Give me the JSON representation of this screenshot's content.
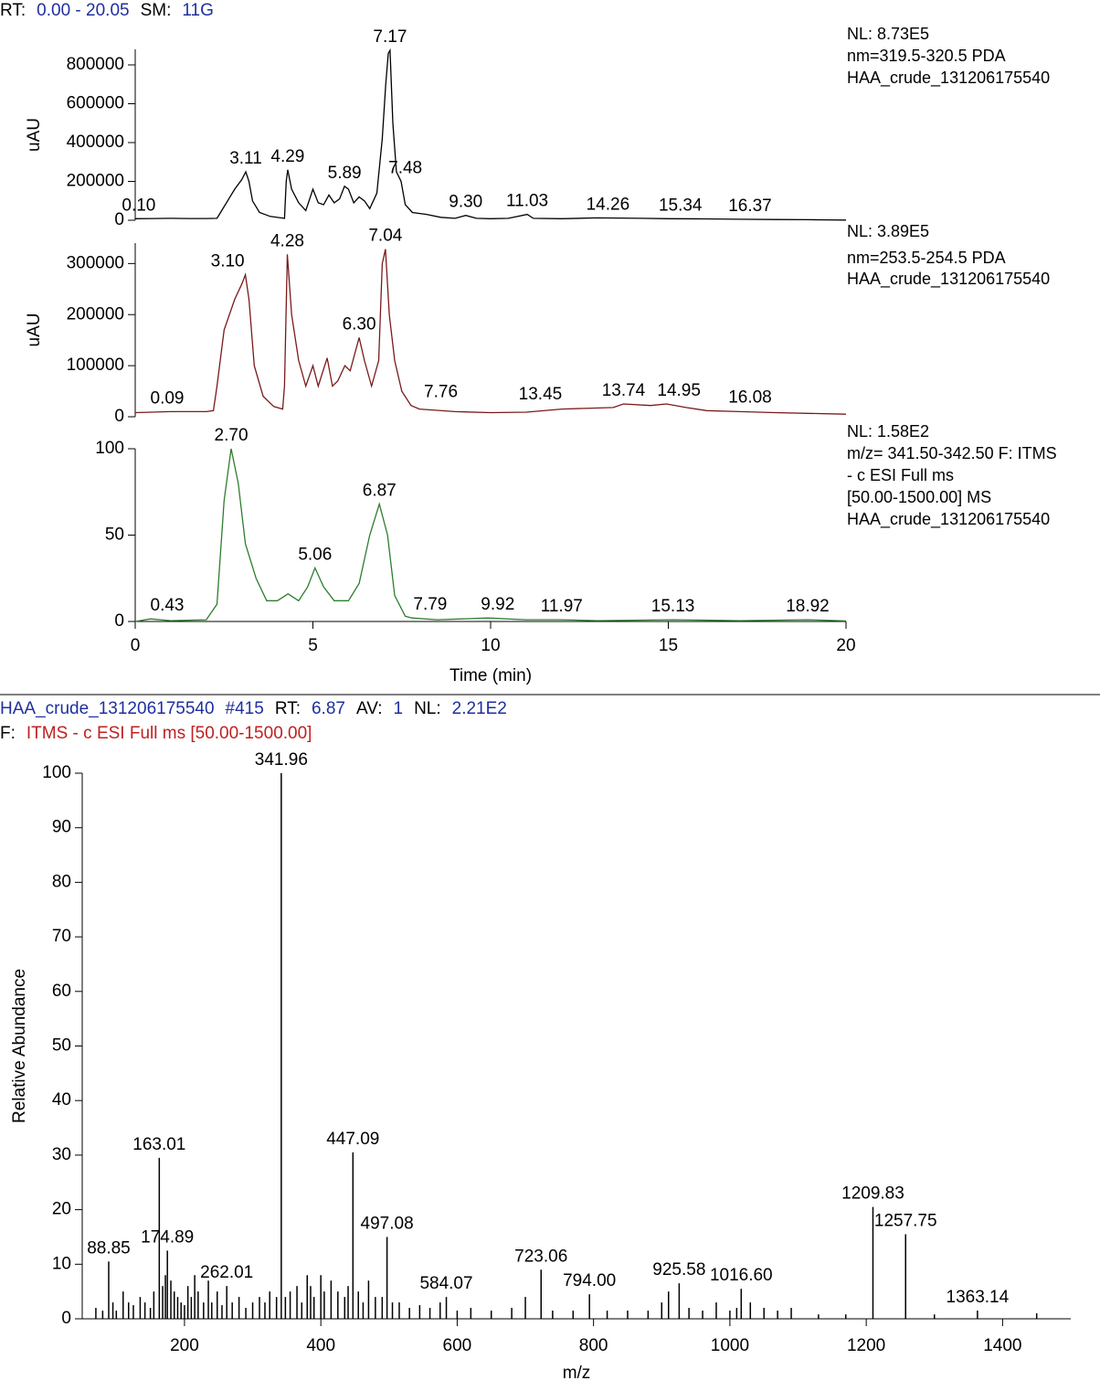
{
  "header": [
    {
      "text": "RT:",
      "color": "#000000"
    },
    {
      "text": "0.00 - 20.05",
      "color": "#1f2f9f"
    },
    {
      "text": "SM:",
      "color": "#000000"
    },
    {
      "text": "11G",
      "color": "#1f2f9f"
    }
  ],
  "chart_data": [
    {
      "type": "line",
      "color": "#000000",
      "y_label": "uAU",
      "info": [
        "NL: 8.73E5",
        "nm=319.5-320.5  PDA",
        "HAA_crude_131206175540"
      ],
      "info_color": "#000000",
      "xlim": [
        0,
        20
      ],
      "ylim": [
        0,
        880000
      ],
      "yticks": [
        0,
        200000,
        400000,
        600000,
        800000
      ],
      "x": [
        0,
        0.5,
        1,
        1.5,
        2,
        2.3,
        2.4,
        2.6,
        2.8,
        3.0,
        3.11,
        3.2,
        3.3,
        3.5,
        3.8,
        4.1,
        4.2,
        4.25,
        4.29,
        4.4,
        4.6,
        4.8,
        5.0,
        5.15,
        5.3,
        5.45,
        5.6,
        5.75,
        5.89,
        6.0,
        6.15,
        6.3,
        6.45,
        6.6,
        6.8,
        6.95,
        7.05,
        7.12,
        7.17,
        7.25,
        7.35,
        7.48,
        7.6,
        7.8,
        8.2,
        8.6,
        9.0,
        9.3,
        9.6,
        10,
        10.5,
        11.03,
        11.2,
        12,
        13,
        14.26,
        15,
        16,
        17,
        18,
        19,
        19.5,
        20
      ],
      "values": [
        8000,
        9000,
        10000,
        9000,
        9000,
        10000,
        40000,
        100000,
        160000,
        210000,
        250000,
        200000,
        100000,
        40000,
        20000,
        12000,
        10000,
        200000,
        260000,
        160000,
        90000,
        50000,
        160000,
        90000,
        80000,
        130000,
        90000,
        110000,
        175000,
        160000,
        90000,
        120000,
        100000,
        60000,
        140000,
        420000,
        700000,
        860000,
        875000,
        500000,
        250000,
        200000,
        80000,
        40000,
        30000,
        15000,
        10000,
        25000,
        10000,
        8000,
        10000,
        30000,
        10000,
        8000,
        12000,
        10000,
        8000,
        7000,
        5000,
        4000,
        3000,
        2000,
        1000
      ],
      "annotations": [
        {
          "text": "0.10",
          "x": 0.1,
          "y": 8000
        },
        {
          "text": "3.11",
          "x": 3.11,
          "y": 250000
        },
        {
          "text": "4.29",
          "x": 4.29,
          "y": 260000
        },
        {
          "text": "5.89",
          "x": 5.89,
          "y": 175000
        },
        {
          "text": "7.17",
          "x": 7.17,
          "y": 875000
        },
        {
          "text": "7.48",
          "x": 7.6,
          "y": 200000
        },
        {
          "text": "9.30",
          "x": 9.3,
          "y": 25000
        },
        {
          "text": "11.03",
          "x": 11.03,
          "y": 30000
        },
        {
          "text": "14.26",
          "x": 13.3,
          "y": 12000
        },
        {
          "text": "15.34",
          "x": 15.34,
          "y": 8000
        },
        {
          "text": "16.37",
          "x": 17.3,
          "y": 5000
        }
      ]
    },
    {
      "type": "line",
      "color": "#7a1a1a",
      "y_label": "uAU",
      "info": [
        "NL: 3.89E5",
        "nm=253.5-254.5  PDA",
        "HAA_crude_131206175540"
      ],
      "info_color": "#7a1a1a",
      "xlim": [
        0,
        20
      ],
      "ylim": [
        0,
        340000
      ],
      "yticks": [
        0,
        100000,
        200000,
        300000
      ],
      "x": [
        0,
        1,
        2,
        2.2,
        2.3,
        2.5,
        2.8,
        3.0,
        3.1,
        3.2,
        3.35,
        3.6,
        3.9,
        4.15,
        4.2,
        4.28,
        4.4,
        4.6,
        4.8,
        5.0,
        5.15,
        5.4,
        5.55,
        5.7,
        5.9,
        6.05,
        6.3,
        6.45,
        6.65,
        6.85,
        6.95,
        7.04,
        7.15,
        7.3,
        7.5,
        7.76,
        8,
        9,
        10,
        11,
        12,
        13.45,
        13.74,
        14.5,
        14.95,
        15.5,
        16.08,
        17,
        18,
        20
      ],
      "values": [
        8000,
        10000,
        10000,
        12000,
        60000,
        170000,
        230000,
        260000,
        278000,
        230000,
        100000,
        40000,
        20000,
        15000,
        60000,
        318000,
        200000,
        110000,
        60000,
        100000,
        60000,
        115000,
        60000,
        70000,
        100000,
        90000,
        155000,
        110000,
        60000,
        110000,
        300000,
        328000,
        200000,
        110000,
        50000,
        22000,
        15000,
        10000,
        8000,
        9000,
        15000,
        18000,
        25000,
        22000,
        25000,
        18000,
        12000,
        10000,
        8000,
        5000
      ],
      "annotations": [
        {
          "text": "0.09",
          "x": 0.9,
          "y": 10000
        },
        {
          "text": "3.10",
          "x": 2.6,
          "y": 278000
        },
        {
          "text": "4.28",
          "x": 4.28,
          "y": 318000
        },
        {
          "text": "6.30",
          "x": 6.3,
          "y": 155000
        },
        {
          "text": "7.04",
          "x": 7.04,
          "y": 328000
        },
        {
          "text": "7.76",
          "x": 8.6,
          "y": 22000
        },
        {
          "text": "13.45",
          "x": 11.4,
          "y": 18000
        },
        {
          "text": "13.74",
          "x": 13.74,
          "y": 25000
        },
        {
          "text": "14.95",
          "x": 15.3,
          "y": 25000
        },
        {
          "text": "16.08",
          "x": 17.3,
          "y": 12000
        }
      ]
    },
    {
      "type": "line",
      "color": "#2e7d2e",
      "x_label": "Time (min)",
      "info": [
        "NL: 1.58E2",
        "m/z= 341.50-342.50 F: ITMS",
        "- c ESI Full ms",
        "[50.00-1500.00]  MS",
        "HAA_crude_131206175540"
      ],
      "info_color": "#2e7d2e",
      "xlim": [
        0,
        20
      ],
      "xticks": [
        0,
        5,
        10,
        15,
        20
      ],
      "ylim": [
        0,
        100
      ],
      "yticks": [
        0,
        50,
        100
      ],
      "x": [
        0,
        0.43,
        1,
        2,
        2.3,
        2.5,
        2.7,
        2.9,
        3.1,
        3.4,
        3.7,
        4.0,
        4.3,
        4.6,
        4.85,
        5.06,
        5.3,
        5.6,
        6.0,
        6.3,
        6.6,
        6.87,
        7.1,
        7.3,
        7.6,
        7.79,
        8.5,
        9.92,
        11,
        11.97,
        13,
        15.13,
        17,
        18.92,
        20
      ],
      "values": [
        0,
        1.5,
        0.5,
        1,
        10,
        70,
        100,
        80,
        45,
        25,
        12,
        12,
        16,
        12,
        20,
        31,
        20,
        12,
        12,
        22,
        50,
        68,
        50,
        15,
        3,
        2,
        1,
        2,
        1,
        1,
        0.5,
        1,
        0.5,
        1,
        0.3
      ],
      "annotations": [
        {
          "text": "0.43",
          "x": 0.9,
          "y": 1.5
        },
        {
          "text": "2.70",
          "x": 2.7,
          "y": 100
        },
        {
          "text": "5.06",
          "x": 5.06,
          "y": 31
        },
        {
          "text": "6.87",
          "x": 6.87,
          "y": 68
        },
        {
          "text": "7.79",
          "x": 8.3,
          "y": 2
        },
        {
          "text": "9.92",
          "x": 10.2,
          "y": 2
        },
        {
          "text": "11.97",
          "x": 12.0,
          "y": 1
        },
        {
          "text": "15.13",
          "x": 15.13,
          "y": 1
        },
        {
          "text": "18.92",
          "x": 18.92,
          "y": 1
        }
      ]
    },
    {
      "type": "stick",
      "color": "#000000",
      "header_lines": [
        [
          {
            "text": "HAA_crude_131206175540",
            "color": "#1f2f9f"
          },
          {
            "text": "#415",
            "color": "#1f2f9f"
          },
          {
            "text": "RT:",
            "color": "#000000"
          },
          {
            "text": "6.87",
            "color": "#1f2f9f"
          },
          {
            "text": "AV:",
            "color": "#000000"
          },
          {
            "text": "1",
            "color": "#1f2f9f"
          },
          {
            "text": "NL:",
            "color": "#000000"
          },
          {
            "text": "2.21E2",
            "color": "#1f2f9f"
          }
        ],
        [
          {
            "text": "F:",
            "color": "#000000"
          },
          {
            "text": "ITMS - c ESI Full ms [50.00-1500.00]",
            "color": "#c0201f"
          }
        ]
      ],
      "x_label": "m/z",
      "y_label": "Relative Abundance",
      "xlim": [
        50,
        1500
      ],
      "xticks": [
        200,
        400,
        600,
        800,
        1000,
        1200,
        1400
      ],
      "ylim": [
        0,
        100
      ],
      "yticks": [
        0,
        10,
        20,
        30,
        40,
        50,
        60,
        70,
        80,
        90,
        100
      ],
      "x": [
        70,
        80,
        88.85,
        95,
        100,
        110,
        118,
        125,
        135,
        142,
        150,
        155,
        163.01,
        168,
        172,
        174.89,
        180,
        185,
        190,
        195,
        200,
        205,
        210,
        215,
        220,
        228,
        235,
        240,
        248,
        255,
        262.01,
        270,
        280,
        290,
        300,
        310,
        318,
        325,
        335,
        341.96,
        348,
        355,
        365,
        372,
        380,
        385,
        390,
        400,
        405,
        415,
        425,
        435,
        440,
        447.09,
        455,
        462,
        470,
        480,
        490,
        497.08,
        505,
        515,
        530,
        545,
        560,
        575,
        584.07,
        600,
        620,
        650,
        680,
        700,
        723.06,
        740,
        770,
        794.0,
        820,
        850,
        880,
        900,
        910,
        925.58,
        940,
        960,
        980,
        1000,
        1010,
        1016.6,
        1030,
        1050,
        1070,
        1090,
        1130,
        1170,
        1209.83,
        1257.75,
        1300,
        1363.14,
        1450
      ],
      "values": [
        2,
        1.5,
        10.5,
        3,
        1.5,
        5,
        3,
        2.5,
        4,
        3,
        2,
        5,
        29.5,
        6,
        8,
        12.5,
        7,
        5,
        4,
        3,
        2.5,
        6,
        4,
        8,
        5,
        3,
        7,
        3,
        5,
        2.5,
        6,
        3,
        4,
        2,
        3,
        4,
        3,
        5,
        4,
        100,
        4,
        5,
        6,
        3,
        8,
        6,
        4,
        8,
        5,
        7,
        5,
        4,
        6,
        30.5,
        5,
        3,
        7,
        4,
        4,
        15,
        3,
        3,
        2,
        2.5,
        2,
        3,
        4,
        1.5,
        2,
        1.5,
        2,
        4,
        9,
        1.5,
        1.5,
        4.5,
        1.5,
        1.5,
        1.5,
        3,
        5,
        6.5,
        2,
        1.5,
        3,
        1.5,
        2,
        5.5,
        3,
        2,
        1.5,
        2,
        0.8,
        0.8,
        20.5,
        15.5,
        0.8,
        1.5,
        1
      ],
      "labels": [
        null,
        null,
        "88.85",
        null,
        null,
        null,
        null,
        null,
        null,
        null,
        null,
        null,
        "163.01",
        null,
        null,
        "174.89",
        null,
        null,
        null,
        null,
        null,
        null,
        null,
        null,
        null,
        null,
        null,
        null,
        null,
        null,
        "262.01",
        null,
        null,
        null,
        null,
        null,
        null,
        null,
        null,
        "341.96",
        null,
        null,
        null,
        null,
        null,
        null,
        null,
        null,
        null,
        null,
        null,
        null,
        null,
        "447.09",
        null,
        null,
        null,
        null,
        null,
        "497.08",
        null,
        null,
        null,
        null,
        null,
        null,
        "584.07",
        null,
        null,
        null,
        null,
        null,
        "723.06",
        null,
        null,
        "794.00",
        null,
        null,
        null,
        null,
        null,
        "925.58",
        null,
        null,
        null,
        null,
        null,
        "1016.60",
        null,
        null,
        null,
        null,
        null,
        null,
        "1209.83",
        "1257.75",
        null,
        "1363.14",
        null
      ]
    }
  ]
}
